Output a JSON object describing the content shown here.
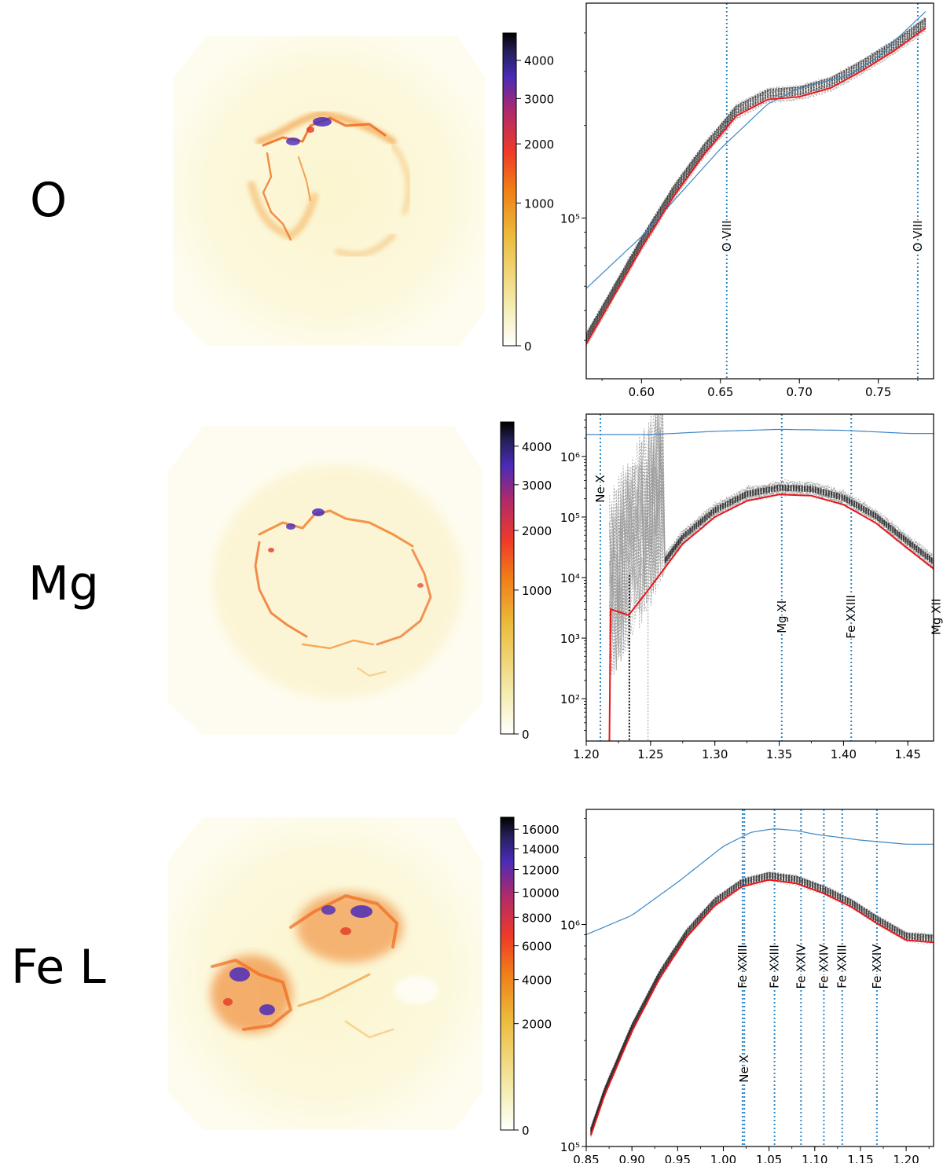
{
  "rows": [
    {
      "label": "O"
    },
    {
      "label": "Mg"
    },
    {
      "label": "Fe L"
    }
  ],
  "colors": {
    "model_best": "#e8161b",
    "model_samples": "#222222",
    "envelope": "#3d86c6",
    "line_marker": "#2f87c3",
    "map_low": "#fdfbe4",
    "map_mid": "#f57c18",
    "map_high": "#4b2ab8",
    "map_peak": "#0a0a0a"
  },
  "chart_data": [
    {
      "type": "line",
      "panel": "O",
      "xlim": [
        0.565,
        0.785
      ],
      "x_ticks": [
        0.6,
        0.65,
        0.7,
        0.75
      ],
      "x_tick_labels": [
        "0.60",
        "0.65",
        "0.70",
        "0.75"
      ],
      "y_scale": "log",
      "ylim": [
        30000,
        500000
      ],
      "y_ticks": [
        100000
      ],
      "y_tick_labels": [
        "10⁵"
      ],
      "line_markers": [
        {
          "x": 0.654,
          "label": "O VIII"
        },
        {
          "x": 0.775,
          "label": "O VIII"
        }
      ],
      "series": [
        {
          "name": "envelope",
          "x": [
            0.565,
            0.6,
            0.65,
            0.68,
            0.7,
            0.73,
            0.75,
            0.78
          ],
          "y": [
            59000,
            87000,
            168000,
            235000,
            265000,
            290000,
            335000,
            470000
          ]
        },
        {
          "name": "best_fit",
          "x": [
            0.565,
            0.58,
            0.6,
            0.62,
            0.64,
            0.65,
            0.66,
            0.68,
            0.7,
            0.72,
            0.74,
            0.76,
            0.78
          ],
          "y": [
            39000,
            53000,
            80000,
            117000,
            162000,
            186000,
            215000,
            243000,
            248000,
            265000,
            302000,
            350000,
            415000
          ]
        }
      ],
      "colorbar": {
        "ticks": [
          0,
          1000,
          2000,
          3000,
          4000
        ],
        "tick_labels": [
          "0",
          "1000",
          "2000",
          "3000",
          "4000"
        ],
        "max": 4800
      }
    },
    {
      "type": "line",
      "panel": "Mg",
      "xlim": [
        1.2,
        1.47
      ],
      "x_ticks": [
        1.2,
        1.25,
        1.3,
        1.35,
        1.4,
        1.45
      ],
      "x_tick_labels": [
        "1.20",
        "1.25",
        "1.30",
        "1.35",
        "1.40",
        "1.45"
      ],
      "y_scale": "log",
      "ylim": [
        20,
        5000000
      ],
      "y_ticks": [
        100,
        1000,
        10000,
        100000,
        1000000
      ],
      "y_tick_labels": [
        "10²",
        "10³",
        "10⁴",
        "10⁵",
        "10⁶"
      ],
      "line_markers": [
        {
          "x": 1.211,
          "label": "Ne X"
        },
        {
          "x": 1.352,
          "label": "Mg XI"
        },
        {
          "x": 1.406,
          "label": "Fe XXIII"
        },
        {
          "x": 1.472,
          "label": "Mg XII"
        }
      ],
      "series": [
        {
          "name": "envelope",
          "x": [
            1.2,
            1.25,
            1.3,
            1.35,
            1.4,
            1.45,
            1.47
          ],
          "y": [
            2300000,
            2300000,
            2600000,
            2800000,
            2700000,
            2400000,
            2400000
          ]
        },
        {
          "name": "best_fit",
          "x": [
            1.218,
            1.219,
            1.233,
            1.25,
            1.275,
            1.3,
            1.325,
            1.35,
            1.375,
            1.4,
            1.425,
            1.45,
            1.47
          ],
          "y": [
            20,
            3000,
            2400,
            7000,
            36000,
            100000,
            185000,
            235000,
            225000,
            160000,
            80000,
            30000,
            14000
          ]
        }
      ],
      "colorbar": {
        "ticks": [
          0,
          1000,
          2000,
          3000,
          4000
        ],
        "tick_labels": [
          "0",
          "1000",
          "2000",
          "3000",
          "4000"
        ],
        "max": 4700
      }
    },
    {
      "type": "line",
      "panel": "Fe L",
      "xlim": [
        0.85,
        1.23
      ],
      "x_ticks": [
        0.85,
        0.9,
        0.95,
        1.0,
        1.05,
        1.1,
        1.15,
        1.2
      ],
      "x_tick_labels": [
        "0.85",
        "0.90",
        "0.95",
        "1.00",
        "1.05",
        "1.10",
        "1.15",
        "1.20"
      ],
      "y_scale": "log",
      "ylim": [
        100000,
        3300000
      ],
      "y_ticks": [
        100000,
        1000000
      ],
      "y_tick_labels": [
        "10⁵",
        "10⁶"
      ],
      "line_markers": [
        {
          "x": 1.021,
          "label": "Fe XXIII"
        },
        {
          "x": 1.023,
          "label": "Ne X"
        },
        {
          "x": 1.056,
          "label": "Fe XXIII"
        },
        {
          "x": 1.085,
          "label": "Fe XXIV"
        },
        {
          "x": 1.11,
          "label": "Fe XXIV"
        },
        {
          "x": 1.13,
          "label": "Fe XXIII"
        },
        {
          "x": 1.168,
          "label": "Fe XXIV"
        }
      ],
      "series": [
        {
          "name": "envelope",
          "x": [
            0.85,
            0.9,
            0.95,
            1.0,
            1.03,
            1.055,
            1.08,
            1.1,
            1.15,
            1.2,
            1.23
          ],
          "y": [
            900000,
            1100000,
            1550000,
            2250000,
            2600000,
            2700000,
            2650000,
            2550000,
            2400000,
            2300000,
            2300000
          ]
        },
        {
          "name": "best_fit",
          "x": [
            0.855,
            0.87,
            0.9,
            0.93,
            0.96,
            0.99,
            1.02,
            1.05,
            1.08,
            1.11,
            1.14,
            1.17,
            1.2,
            1.23
          ],
          "y": [
            112000,
            170000,
            330000,
            570000,
            880000,
            1210000,
            1480000,
            1590000,
            1530000,
            1380000,
            1200000,
            1000000,
            850000,
            830000
          ]
        }
      ],
      "colorbar": {
        "ticks": [
          0,
          2000,
          4000,
          6000,
          8000,
          10000,
          12000,
          14000,
          16000
        ],
        "tick_labels": [
          "0",
          "2000",
          "4000",
          "6000",
          "8000",
          "10000",
          "12000",
          "14000",
          "16000"
        ],
        "max": 17300
      }
    }
  ]
}
